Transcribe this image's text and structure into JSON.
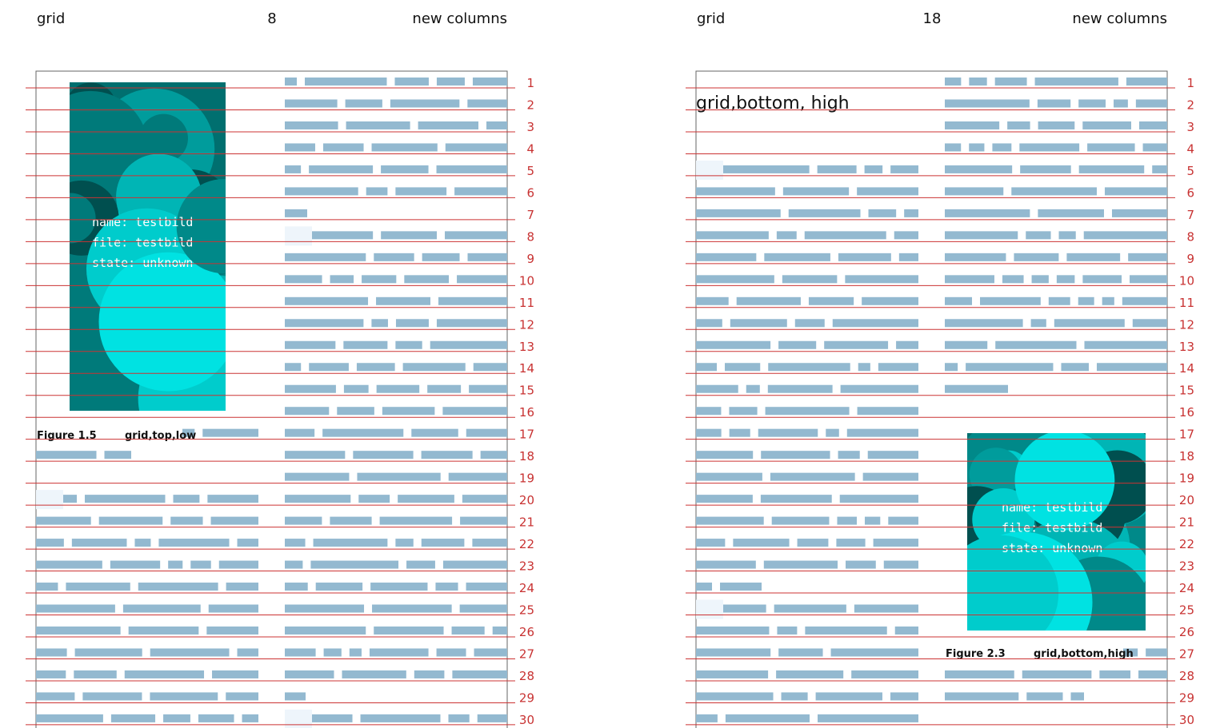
{
  "pages": [
    {
      "header": {
        "left": "grid",
        "center": "8",
        "right": "new columns"
      },
      "line_numbers": [
        1,
        2,
        3,
        4,
        5,
        6,
        7,
        8,
        9,
        10,
        11,
        12,
        13,
        14,
        15,
        16,
        17,
        18,
        19,
        20,
        21,
        22,
        23,
        24,
        25,
        26,
        27,
        28,
        29,
        30
      ],
      "image": {
        "lines": [
          "name: testbild",
          "file: testbild",
          "state: unknown"
        ]
      },
      "caption": {
        "label": "Figure 1.5",
        "text": "grid,top,low"
      }
    },
    {
      "header": {
        "left": "grid",
        "center": "18",
        "right": "new columns"
      },
      "heading": "grid,bottom, high",
      "line_numbers": [
        1,
        2,
        3,
        4,
        5,
        6,
        7,
        8,
        9,
        10,
        11,
        12,
        13,
        14,
        15,
        16,
        17,
        18,
        19,
        20,
        21,
        22,
        23,
        24,
        25,
        26,
        27,
        28,
        29,
        30
      ],
      "image": {
        "lines": [
          "name: testbild",
          "file: testbild",
          "state: unknown"
        ]
      },
      "caption": {
        "label": "Figure 2.3",
        "text": "grid,bottom,high"
      }
    }
  ]
}
